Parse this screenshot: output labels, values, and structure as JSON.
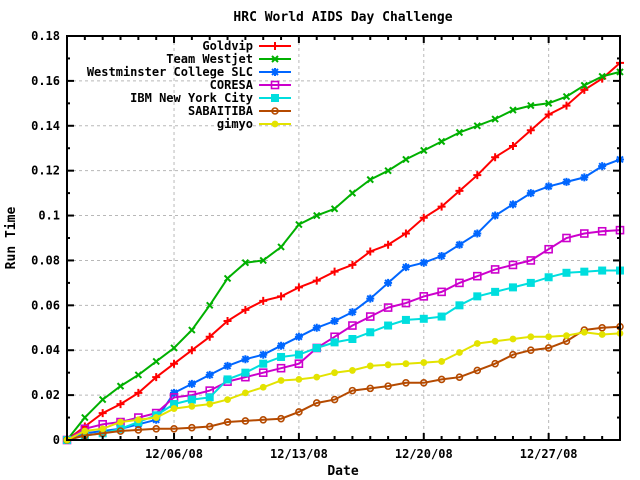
{
  "window": {
    "background": "#ffffff"
  },
  "chart_data": {
    "type": "line",
    "title": "HRC World AIDS Day Challenge",
    "xlabel": "Date",
    "ylabel": "Run Time",
    "ylim": [
      0,
      0.18
    ],
    "x_range_days": [
      0,
      31
    ],
    "grid": true,
    "grid_color": "#b8b8b8",
    "border_color": "#000000",
    "legend_position": "top-left-inside",
    "y_ticks": [
      {
        "label": "0",
        "value": 0
      },
      {
        "label": "0.02",
        "value": 0.02
      },
      {
        "label": "0.04",
        "value": 0.04
      },
      {
        "label": "0.06",
        "value": 0.06
      },
      {
        "label": "0.08",
        "value": 0.08
      },
      {
        "label": "0.1",
        "value": 0.1
      },
      {
        "label": "0.12",
        "value": 0.12
      },
      {
        "label": "0.14",
        "value": 0.14
      },
      {
        "label": "0.16",
        "value": 0.16
      },
      {
        "label": "0.18",
        "value": 0.18
      }
    ],
    "x_ticks": [
      {
        "label": "12/06/08",
        "day": 6
      },
      {
        "label": "12/13/08",
        "day": 13
      },
      {
        "label": "12/20/08",
        "day": 20
      },
      {
        "label": "12/27/08",
        "day": 27
      }
    ],
    "series": [
      {
        "name": "Goldvip",
        "color": "#ff0000",
        "marker": "plus",
        "values": [
          0,
          0.006,
          0.012,
          0.016,
          0.021,
          0.028,
          0.034,
          0.04,
          0.046,
          0.053,
          0.058,
          0.062,
          0.064,
          0.068,
          0.071,
          0.075,
          0.078,
          0.084,
          0.087,
          0.092,
          0.099,
          0.104,
          0.111,
          0.118,
          0.126,
          0.131,
          0.138,
          0.145,
          0.149,
          0.156,
          0.161,
          0.168
        ]
      },
      {
        "name": "Team Westjet",
        "color": "#00b000",
        "marker": "cross",
        "values": [
          0,
          0.01,
          0.018,
          0.024,
          0.029,
          0.035,
          0.041,
          0.049,
          0.06,
          0.072,
          0.079,
          0.08,
          0.086,
          0.096,
          0.1,
          0.103,
          0.11,
          0.116,
          0.12,
          0.125,
          0.129,
          0.133,
          0.137,
          0.14,
          0.143,
          0.147,
          0.149,
          0.15,
          0.153,
          0.158,
          0.162,
          0.164
        ]
      },
      {
        "name": "Westminster College SLC",
        "color": "#0066ff",
        "marker": "asterisk",
        "values": [
          0,
          0.003,
          0.004,
          0.005,
          0.007,
          0.009,
          0.021,
          0.025,
          0.029,
          0.033,
          0.036,
          0.038,
          0.042,
          0.046,
          0.05,
          0.053,
          0.057,
          0.063,
          0.07,
          0.077,
          0.079,
          0.082,
          0.087,
          0.092,
          0.1,
          0.105,
          0.11,
          0.113,
          0.115,
          0.117,
          0.122,
          0.125
        ]
      },
      {
        "name": "CORESA",
        "color": "#cc00cc",
        "marker": "square-open",
        "values": [
          0,
          0.005,
          0.007,
          0.008,
          0.01,
          0.012,
          0.019,
          0.02,
          0.022,
          0.026,
          0.028,
          0.03,
          0.032,
          0.034,
          0.041,
          0.046,
          0.051,
          0.055,
          0.059,
          0.061,
          0.064,
          0.066,
          0.07,
          0.073,
          0.076,
          0.078,
          0.08,
          0.085,
          0.09,
          0.092,
          0.093,
          0.0935
        ]
      },
      {
        "name": "IBM New York City",
        "color": "#00dede",
        "marker": "square-filled",
        "values": [
          0,
          0.002,
          0.003,
          0.005,
          0.008,
          0.011,
          0.016,
          0.018,
          0.019,
          0.027,
          0.03,
          0.034,
          0.037,
          0.038,
          0.041,
          0.0435,
          0.045,
          0.048,
          0.051,
          0.0535,
          0.054,
          0.055,
          0.06,
          0.064,
          0.066,
          0.068,
          0.07,
          0.0725,
          0.0745,
          0.075,
          0.0755,
          0.0755
        ]
      },
      {
        "name": "SABAITIBA",
        "color": "#b54a00",
        "marker": "circle-open",
        "values": [
          0,
          0.002,
          0.003,
          0.004,
          0.0045,
          0.005,
          0.005,
          0.0055,
          0.006,
          0.008,
          0.0085,
          0.009,
          0.0095,
          0.0125,
          0.0165,
          0.018,
          0.022,
          0.023,
          0.024,
          0.0255,
          0.0255,
          0.027,
          0.028,
          0.031,
          0.034,
          0.038,
          0.04,
          0.041,
          0.044,
          0.049,
          0.05,
          0.0505
        ]
      },
      {
        "name": "gimyo",
        "color": "#e3e300",
        "marker": "circle-filled",
        "values": [
          0,
          0.004,
          0.005,
          0.008,
          0.009,
          0.01,
          0.014,
          0.015,
          0.016,
          0.018,
          0.021,
          0.0235,
          0.0265,
          0.027,
          0.028,
          0.03,
          0.031,
          0.033,
          0.0335,
          0.034,
          0.0345,
          0.035,
          0.039,
          0.043,
          0.044,
          0.045,
          0.046,
          0.046,
          0.0465,
          0.048,
          0.047,
          0.0475
        ]
      }
    ]
  }
}
